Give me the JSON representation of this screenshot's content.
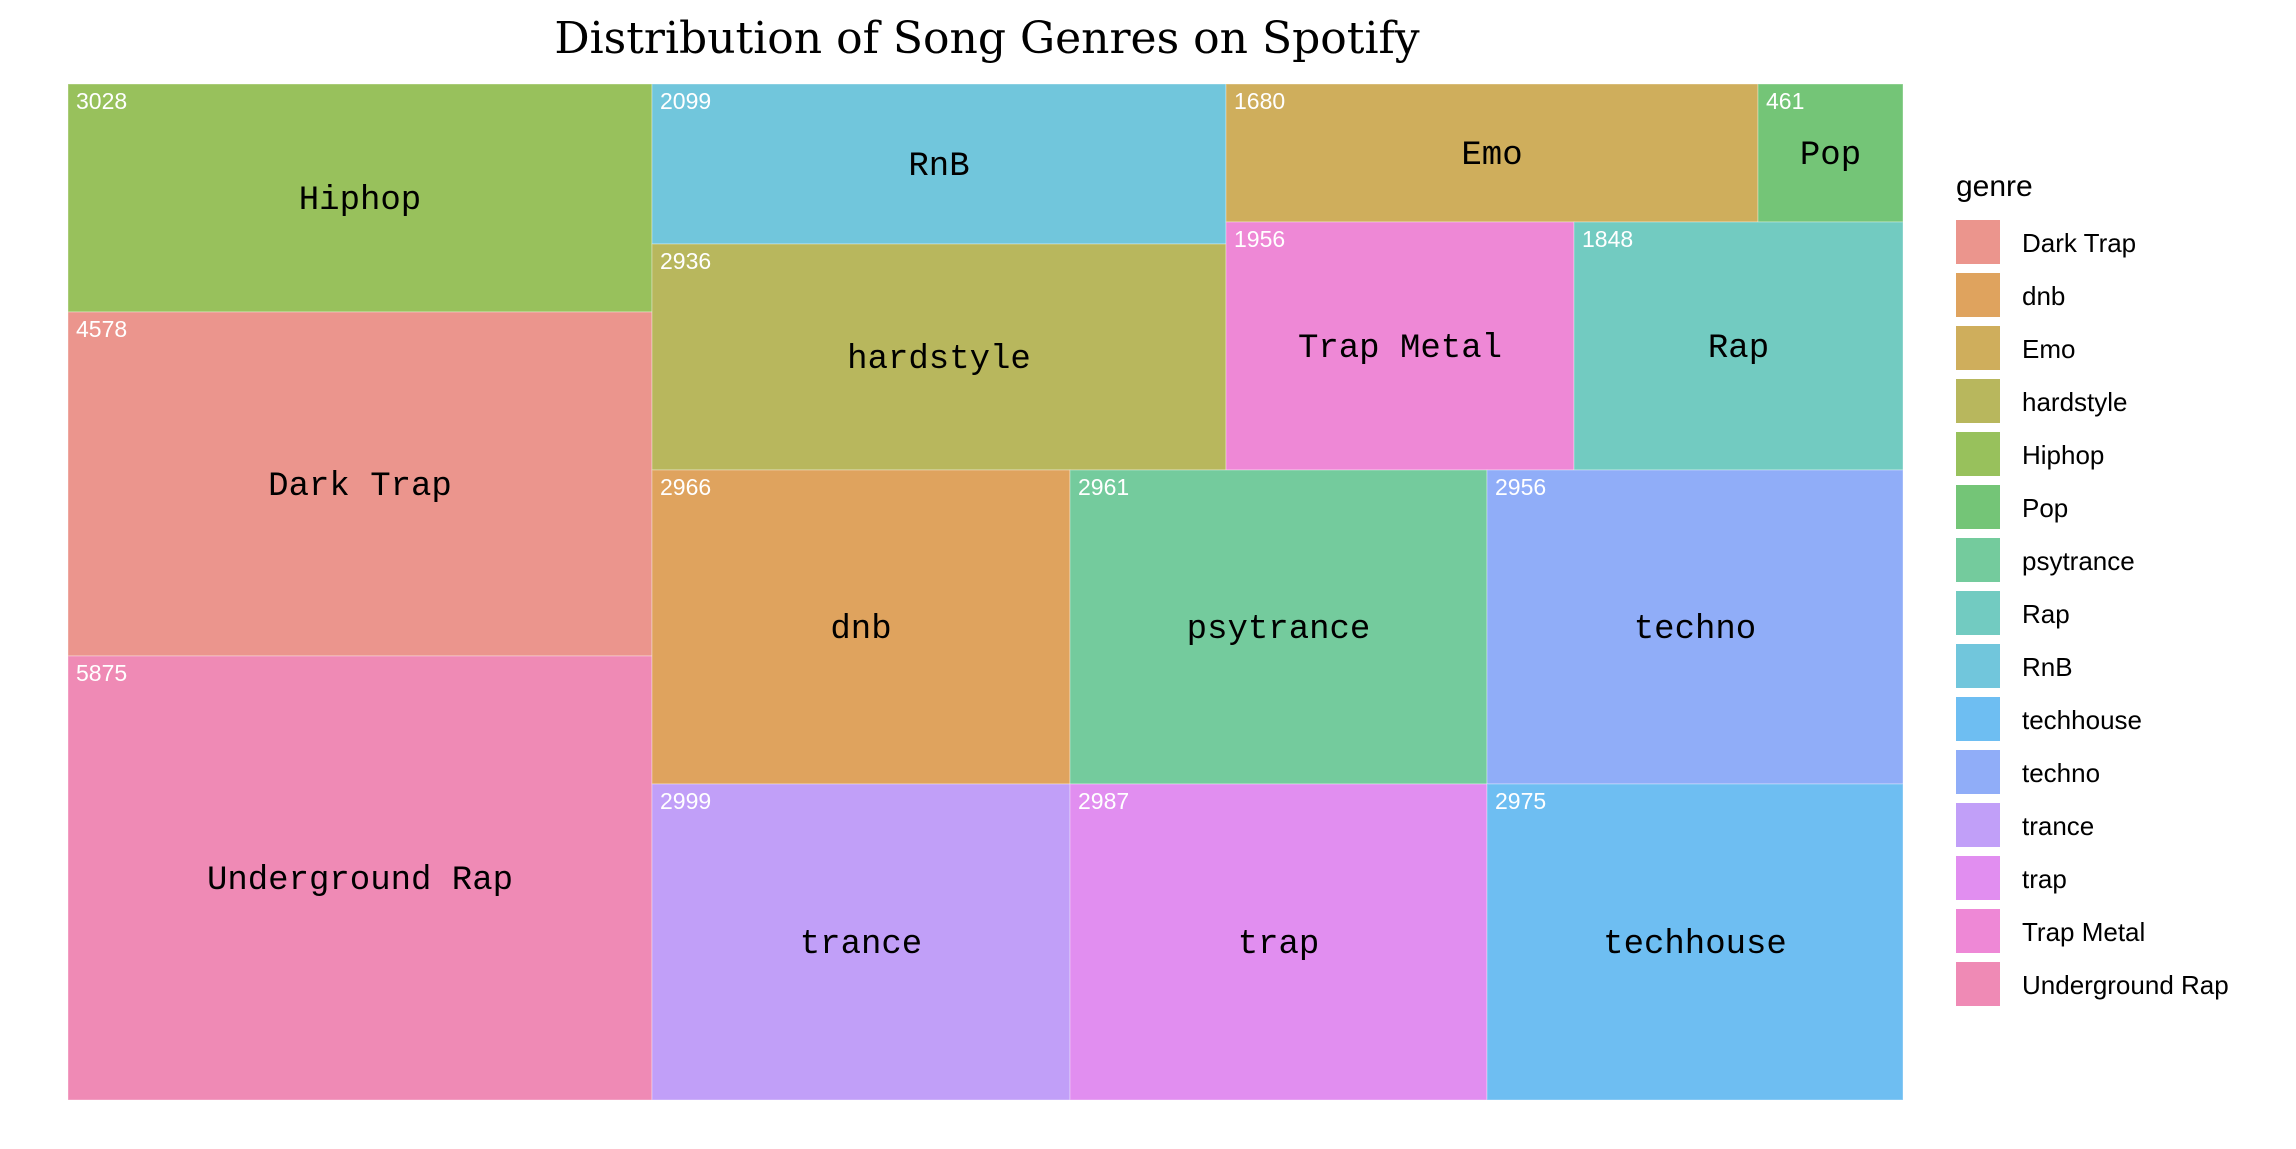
{
  "chart_data": {
    "type": "treemap",
    "title": "Distribution of Song Genres on Spotify",
    "legend_title": "genre",
    "legend_position": "right",
    "tiles": [
      {
        "genre": "Hiphop",
        "count": 3028,
        "color": "#98c15c"
      },
      {
        "genre": "Dark Trap",
        "count": 4578,
        "color": "#eb958d"
      },
      {
        "genre": "Underground Rap",
        "count": 5875,
        "color": "#ef8ab5"
      },
      {
        "genre": "RnB",
        "count": 2099,
        "color": "#71c6dc"
      },
      {
        "genre": "hardstyle",
        "count": 2936,
        "color": "#b8b75d"
      },
      {
        "genre": "Emo",
        "count": 1680,
        "color": "#cfae5c"
      },
      {
        "genre": "Pop",
        "count": 461,
        "color": "#74c577"
      },
      {
        "genre": "Trap Metal",
        "count": 1956,
        "color": "#ee88d6"
      },
      {
        "genre": "Rap",
        "count": 1848,
        "color": "#72cbc1"
      },
      {
        "genre": "dnb",
        "count": 2966,
        "color": "#dfa35e"
      },
      {
        "genre": "psytrance",
        "count": 2961,
        "color": "#74cb9d"
      },
      {
        "genre": "techno",
        "count": 2956,
        "color": "#90adf8"
      },
      {
        "genre": "trance",
        "count": 2999,
        "color": "#c19ff8"
      },
      {
        "genre": "trap",
        "count": 2987,
        "color": "#e18ef0"
      },
      {
        "genre": "techhouse",
        "count": 2975,
        "color": "#6ebef2"
      }
    ],
    "legend": [
      {
        "label": "Dark Trap",
        "color": "#eb958d"
      },
      {
        "label": "dnb",
        "color": "#dfa35e"
      },
      {
        "label": "Emo",
        "color": "#cfae5c"
      },
      {
        "label": "hardstyle",
        "color": "#b8b75d"
      },
      {
        "label": "Hiphop",
        "color": "#98c15c"
      },
      {
        "label": "Pop",
        "color": "#74c577"
      },
      {
        "label": "psytrance",
        "color": "#74cb9d"
      },
      {
        "label": "Rap",
        "color": "#72cbc1"
      },
      {
        "label": "RnB",
        "color": "#71c6dc"
      },
      {
        "label": "techhouse",
        "color": "#6ebef2"
      },
      {
        "label": "techno",
        "color": "#90adf8"
      },
      {
        "label": "trance",
        "color": "#c19ff8"
      },
      {
        "label": "trap",
        "color": "#e18ef0"
      },
      {
        "label": "Trap Metal",
        "color": "#ee88d6"
      },
      {
        "label": "Underground Rap",
        "color": "#ef8ab5"
      }
    ]
  }
}
